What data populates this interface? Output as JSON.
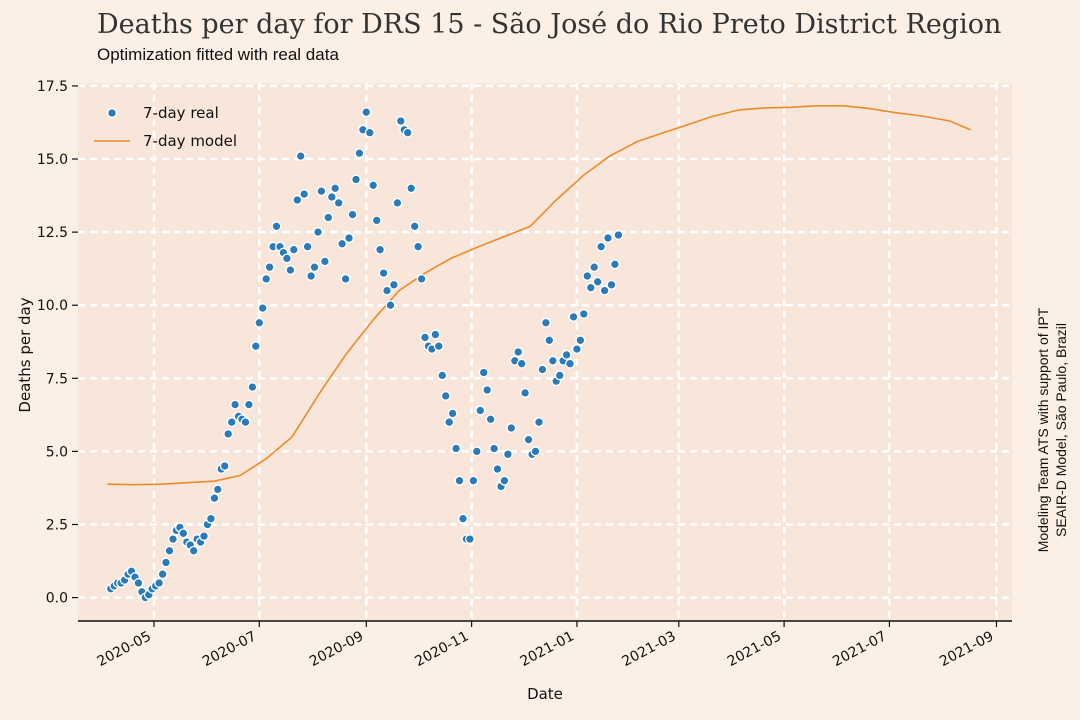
{
  "chart_data": {
    "type": "scatter",
    "title": "Deaths per day for DRS 15 - São José do Rio Preto District Region",
    "subtitle": "Optimization fitted with real data",
    "xlabel": "Date",
    "ylabel": "Deaths per day",
    "credit_lines": [
      "Modeling Team ATS with support of IPT",
      "SEAIR-D Model, São Paulo, Brazil"
    ],
    "xlim": [
      "2020-03-18",
      "2021-09-10"
    ],
    "ylim": [
      -0.8,
      17.6
    ],
    "x_ticks": [
      "2020-05-01",
      "2020-07-01",
      "2020-09-01",
      "2020-11-01",
      "2021-01-01",
      "2021-03-01",
      "2021-05-01",
      "2021-07-01",
      "2021-09-01"
    ],
    "x_tick_labels": [
      "2020-05",
      "2020-07",
      "2020-09",
      "2020-11",
      "2021-01",
      "2021-03",
      "2021-05",
      "2021-07",
      "2021-09"
    ],
    "y_ticks": [
      0.0,
      2.5,
      5.0,
      7.5,
      10.0,
      12.5,
      15.0,
      17.5
    ],
    "y_tick_labels": [
      "0.0",
      "2.5",
      "5.0",
      "7.5",
      "10.0",
      "12.5",
      "15.0",
      "17.5"
    ],
    "grid": true,
    "legend_position": "top-left",
    "colors": {
      "background": "#fcf0e6",
      "plot_area": "#f9e6da",
      "grid": "#ffffff",
      "real": "#2b7bb9",
      "model": "#ee8a2b"
    },
    "series": [
      {
        "name": "7-day real",
        "type": "scatter",
        "points": [
          [
            "2020-04-06",
            0.3
          ],
          [
            "2020-04-08",
            0.4
          ],
          [
            "2020-04-10",
            0.5
          ],
          [
            "2020-04-12",
            0.5
          ],
          [
            "2020-04-14",
            0.6
          ],
          [
            "2020-04-16",
            0.8
          ],
          [
            "2020-04-18",
            0.9
          ],
          [
            "2020-04-20",
            0.7
          ],
          [
            "2020-04-22",
            0.5
          ],
          [
            "2020-04-24",
            0.2
          ],
          [
            "2020-04-26",
            0.0
          ],
          [
            "2020-04-28",
            0.1
          ],
          [
            "2020-04-30",
            0.3
          ],
          [
            "2020-05-02",
            0.4
          ],
          [
            "2020-05-04",
            0.5
          ],
          [
            "2020-05-06",
            0.8
          ],
          [
            "2020-05-08",
            1.2
          ],
          [
            "2020-05-10",
            1.6
          ],
          [
            "2020-05-12",
            2.0
          ],
          [
            "2020-05-14",
            2.3
          ],
          [
            "2020-05-16",
            2.4
          ],
          [
            "2020-05-18",
            2.2
          ],
          [
            "2020-05-20",
            1.9
          ],
          [
            "2020-05-22",
            1.8
          ],
          [
            "2020-05-24",
            1.6
          ],
          [
            "2020-05-26",
            2.0
          ],
          [
            "2020-05-28",
            1.9
          ],
          [
            "2020-05-30",
            2.1
          ],
          [
            "2020-06-01",
            2.5
          ],
          [
            "2020-06-03",
            2.7
          ],
          [
            "2020-06-05",
            3.4
          ],
          [
            "2020-06-07",
            3.7
          ],
          [
            "2020-06-09",
            4.4
          ],
          [
            "2020-06-11",
            4.5
          ],
          [
            "2020-06-13",
            5.6
          ],
          [
            "2020-06-15",
            6.0
          ],
          [
            "2020-06-17",
            6.6
          ],
          [
            "2020-06-19",
            6.2
          ],
          [
            "2020-06-21",
            6.1
          ],
          [
            "2020-06-23",
            6.0
          ],
          [
            "2020-06-25",
            6.6
          ],
          [
            "2020-06-27",
            7.2
          ],
          [
            "2020-06-29",
            8.6
          ],
          [
            "2020-07-01",
            9.4
          ],
          [
            "2020-07-03",
            9.9
          ],
          [
            "2020-07-05",
            10.9
          ],
          [
            "2020-07-07",
            11.3
          ],
          [
            "2020-07-09",
            12.0
          ],
          [
            "2020-07-11",
            12.7
          ],
          [
            "2020-07-13",
            12.0
          ],
          [
            "2020-07-15",
            11.8
          ],
          [
            "2020-07-17",
            11.6
          ],
          [
            "2020-07-19",
            11.2
          ],
          [
            "2020-07-21",
            11.9
          ],
          [
            "2020-07-23",
            13.6
          ],
          [
            "2020-07-25",
            15.1
          ],
          [
            "2020-07-27",
            13.8
          ],
          [
            "2020-07-29",
            12.0
          ],
          [
            "2020-07-31",
            11.0
          ],
          [
            "2020-08-02",
            11.3
          ],
          [
            "2020-08-04",
            12.5
          ],
          [
            "2020-08-06",
            13.9
          ],
          [
            "2020-08-08",
            11.5
          ],
          [
            "2020-08-10",
            13.0
          ],
          [
            "2020-08-12",
            13.7
          ],
          [
            "2020-08-14",
            14.0
          ],
          [
            "2020-08-16",
            13.5
          ],
          [
            "2020-08-18",
            12.1
          ],
          [
            "2020-08-20",
            10.9
          ],
          [
            "2020-08-22",
            12.3
          ],
          [
            "2020-08-24",
            13.1
          ],
          [
            "2020-08-26",
            14.3
          ],
          [
            "2020-08-28",
            15.2
          ],
          [
            "2020-08-30",
            16.0
          ],
          [
            "2020-09-01",
            16.6
          ],
          [
            "2020-09-03",
            15.9
          ],
          [
            "2020-09-05",
            14.1
          ],
          [
            "2020-09-07",
            12.9
          ],
          [
            "2020-09-09",
            11.9
          ],
          [
            "2020-09-11",
            11.1
          ],
          [
            "2020-09-13",
            10.5
          ],
          [
            "2020-09-15",
            10.0
          ],
          [
            "2020-09-17",
            10.7
          ],
          [
            "2020-09-19",
            13.5
          ],
          [
            "2020-09-21",
            16.3
          ],
          [
            "2020-09-23",
            16.0
          ],
          [
            "2020-09-25",
            15.9
          ],
          [
            "2020-09-27",
            14.0
          ],
          [
            "2020-09-29",
            12.7
          ],
          [
            "2020-10-01",
            12.0
          ],
          [
            "2020-10-03",
            10.9
          ],
          [
            "2020-10-05",
            8.9
          ],
          [
            "2020-10-07",
            8.6
          ],
          [
            "2020-10-09",
            8.5
          ],
          [
            "2020-10-11",
            9.0
          ],
          [
            "2020-10-13",
            8.6
          ],
          [
            "2020-10-15",
            7.6
          ],
          [
            "2020-10-17",
            6.9
          ],
          [
            "2020-10-19",
            6.0
          ],
          [
            "2020-10-21",
            6.3
          ],
          [
            "2020-10-23",
            5.1
          ],
          [
            "2020-10-25",
            4.0
          ],
          [
            "2020-10-27",
            2.7
          ],
          [
            "2020-10-29",
            2.0
          ],
          [
            "2020-10-31",
            2.0
          ],
          [
            "2020-11-02",
            4.0
          ],
          [
            "2020-11-04",
            5.0
          ],
          [
            "2020-11-06",
            6.4
          ],
          [
            "2020-11-08",
            7.7
          ],
          [
            "2020-11-10",
            7.1
          ],
          [
            "2020-11-12",
            6.1
          ],
          [
            "2020-11-14",
            5.1
          ],
          [
            "2020-11-16",
            4.4
          ],
          [
            "2020-11-18",
            3.8
          ],
          [
            "2020-11-20",
            4.0
          ],
          [
            "2020-11-22",
            4.9
          ],
          [
            "2020-11-24",
            5.8
          ],
          [
            "2020-11-26",
            8.1
          ],
          [
            "2020-11-28",
            8.4
          ],
          [
            "2020-11-30",
            8.0
          ],
          [
            "2020-12-02",
            7.0
          ],
          [
            "2020-12-04",
            5.4
          ],
          [
            "2020-12-06",
            4.9
          ],
          [
            "2020-12-08",
            5.0
          ],
          [
            "2020-12-10",
            6.0
          ],
          [
            "2020-12-12",
            7.8
          ],
          [
            "2020-12-14",
            9.4
          ],
          [
            "2020-12-16",
            8.8
          ],
          [
            "2020-12-18",
            8.1
          ],
          [
            "2020-12-20",
            7.4
          ],
          [
            "2020-12-22",
            7.6
          ],
          [
            "2020-12-24",
            8.1
          ],
          [
            "2020-12-26",
            8.3
          ],
          [
            "2020-12-28",
            8.0
          ],
          [
            "2020-12-30",
            9.6
          ],
          [
            "2021-01-01",
            8.5
          ],
          [
            "2021-01-03",
            8.8
          ],
          [
            "2021-01-05",
            9.7
          ],
          [
            "2021-01-07",
            11.0
          ],
          [
            "2021-01-09",
            10.6
          ],
          [
            "2021-01-11",
            11.3
          ],
          [
            "2021-01-13",
            10.8
          ],
          [
            "2021-01-15",
            12.0
          ],
          [
            "2021-01-17",
            10.5
          ],
          [
            "2021-01-19",
            12.3
          ],
          [
            "2021-01-21",
            10.7
          ],
          [
            "2021-01-23",
            11.4
          ],
          [
            "2021-01-25",
            12.4
          ]
        ]
      },
      {
        "name": "7-day model",
        "type": "line",
        "points": [
          [
            "2020-04-04",
            3.88
          ],
          [
            "2020-04-20",
            3.86
          ],
          [
            "2020-05-05",
            3.88
          ],
          [
            "2020-05-20",
            3.93
          ],
          [
            "2020-06-05",
            3.98
          ],
          [
            "2020-06-20",
            4.18
          ],
          [
            "2020-07-05",
            4.75
          ],
          [
            "2020-07-20",
            5.5
          ],
          [
            "2020-08-05",
            7.0
          ],
          [
            "2020-08-20",
            8.3
          ],
          [
            "2020-09-05",
            9.5
          ],
          [
            "2020-09-20",
            10.5
          ],
          [
            "2020-10-05",
            11.1
          ],
          [
            "2020-10-20",
            11.6
          ],
          [
            "2020-11-05",
            12.0
          ],
          [
            "2020-11-20",
            12.35
          ],
          [
            "2020-12-05",
            12.7
          ],
          [
            "2020-12-20",
            13.6
          ],
          [
            "2021-01-05",
            14.45
          ],
          [
            "2021-01-20",
            15.1
          ],
          [
            "2021-02-05",
            15.6
          ],
          [
            "2021-02-20",
            15.9
          ],
          [
            "2021-03-05",
            16.15
          ],
          [
            "2021-03-20",
            16.45
          ],
          [
            "2021-04-05",
            16.68
          ],
          [
            "2021-04-20",
            16.75
          ],
          [
            "2021-05-05",
            16.77
          ],
          [
            "2021-05-20",
            16.82
          ],
          [
            "2021-06-05",
            16.82
          ],
          [
            "2021-06-20",
            16.72
          ],
          [
            "2021-07-05",
            16.58
          ],
          [
            "2021-07-20",
            16.47
          ],
          [
            "2021-08-05",
            16.3
          ],
          [
            "2021-08-17",
            16.0
          ]
        ]
      }
    ]
  }
}
